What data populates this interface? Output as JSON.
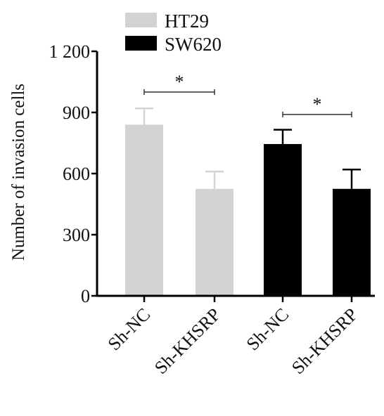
{
  "chart_data": {
    "type": "bar",
    "ylabel": "Number of invasion cells",
    "ylim": [
      0,
      1200
    ],
    "yticks": [
      0,
      300,
      600,
      900,
      1200
    ],
    "ytick_labels": [
      "0",
      "300",
      "600",
      "900",
      "1 200"
    ],
    "categories": [
      "Sh-NC",
      "Sh-KHSRP",
      "Sh-NC",
      "Sh-KHSRP"
    ],
    "legend_position": "top",
    "series": [
      {
        "name": "HT29",
        "color": "#d3d3d3",
        "values": [
          840,
          525,
          null,
          null
        ],
        "errors": [
          80,
          85,
          null,
          null
        ]
      },
      {
        "name": "SW620",
        "color": "#000000",
        "values": [
          null,
          null,
          745,
          525
        ],
        "errors": [
          null,
          null,
          70,
          95
        ]
      }
    ],
    "annotations": [
      {
        "text": "*",
        "from_category": 0,
        "to_category": 1,
        "y": 1000
      },
      {
        "text": "*",
        "from_category": 2,
        "to_category": 3,
        "y": 890
      }
    ]
  }
}
